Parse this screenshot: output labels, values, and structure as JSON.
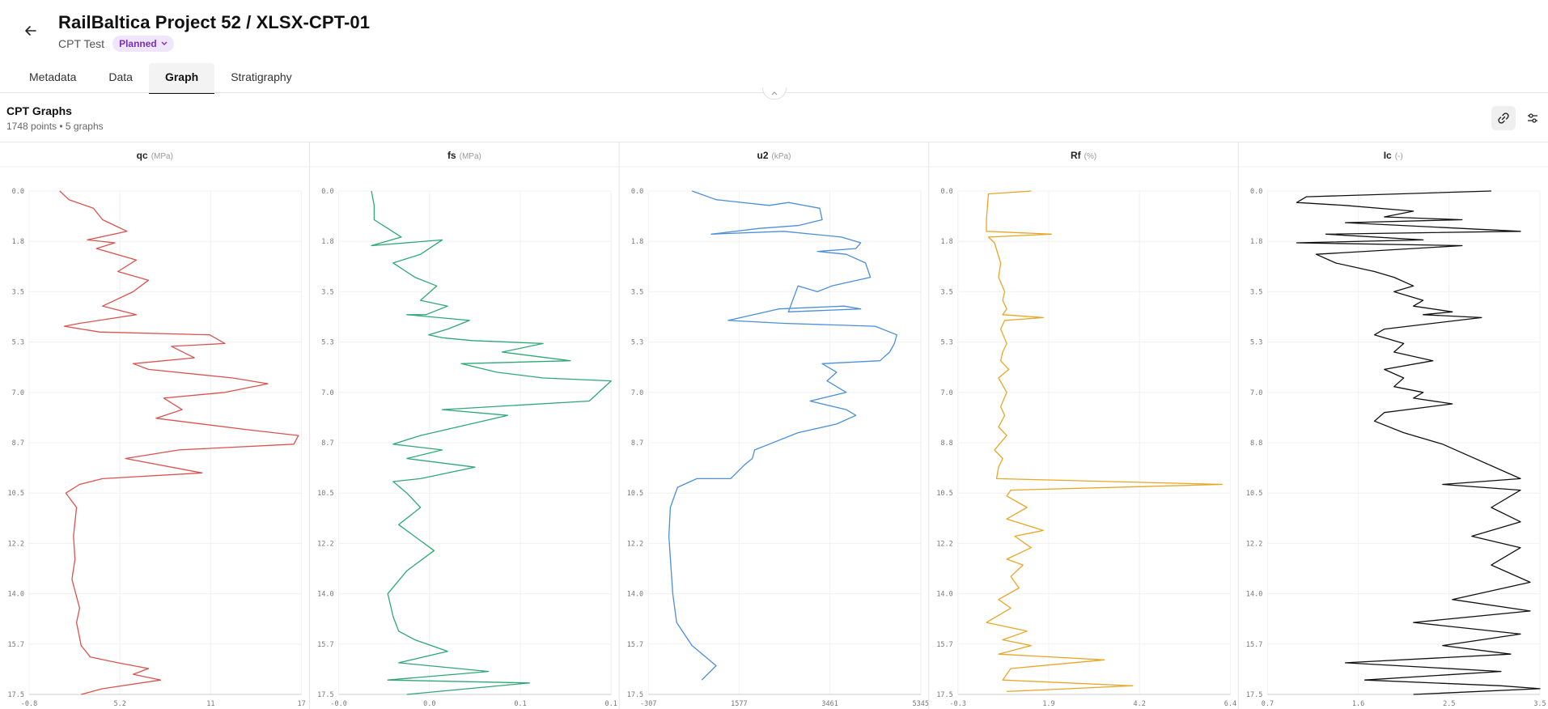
{
  "header": {
    "title": "RailBaltica Project 52 / XLSX-CPT-01",
    "subtitle": "CPT Test",
    "status": "Planned"
  },
  "tabs": [
    {
      "label": "Metadata"
    },
    {
      "label": "Data"
    },
    {
      "label": "Graph"
    },
    {
      "label": "Stratigraphy"
    }
  ],
  "active_tab": "Graph",
  "panel": {
    "title": "CPT Graphs",
    "summary": "1748 points • 5 graphs"
  },
  "icons": {
    "back": "arrow-left-icon",
    "badge": "chevron-down-icon",
    "collapse": "chevron-up-icon",
    "link": "link-icon",
    "settings": "sliders-icon"
  },
  "chart_data": [
    {
      "type": "line",
      "title": "qc",
      "unit": "(MPa)",
      "color": "#d9534f",
      "x_ticks": [
        "-0.8",
        "5.2",
        "11",
        "17"
      ],
      "y_ticks": [
        "0.0",
        "1.8",
        "3.5",
        "5.3",
        "7.0",
        "8.7",
        "10.5",
        "12.2",
        "14.0",
        "15.7",
        "17.5"
      ],
      "xlim": [
        -0.8,
        17
      ],
      "ylim": [
        0,
        17.5
      ],
      "x": [
        1.2,
        1.8,
        3.4,
        4.0,
        5.6,
        3.0,
        4.8,
        3.6,
        6.2,
        5.0,
        7.0,
        6.0,
        4.0,
        6.2,
        2.5,
        1.5,
        3.8,
        11.0,
        12.0,
        8.5,
        10.0,
        6.0,
        7.0,
        12.5,
        14.8,
        12.0,
        8.0,
        9.2,
        7.5,
        13.5,
        16.8,
        16.5,
        9.0,
        5.5,
        10.5,
        4.0,
        2.5,
        1.6,
        2.3,
        2.1,
        2.2,
        2.0,
        2.5,
        2.3,
        2.6,
        3.2,
        5.0,
        7.0,
        6.0,
        7.8,
        4.0,
        2.6
      ],
      "y": [
        0.0,
        0.3,
        0.6,
        1.0,
        1.4,
        1.7,
        1.8,
        2.0,
        2.4,
        2.8,
        3.1,
        3.5,
        4.0,
        4.3,
        4.6,
        4.7,
        4.9,
        5.0,
        5.3,
        5.4,
        5.8,
        6.0,
        6.2,
        6.5,
        6.7,
        7.0,
        7.2,
        7.6,
        7.9,
        8.3,
        8.5,
        8.8,
        9.0,
        9.3,
        9.8,
        10.0,
        10.2,
        10.5,
        11.0,
        12.0,
        12.8,
        13.5,
        14.5,
        15.0,
        15.8,
        16.2,
        16.4,
        16.6,
        16.8,
        17.0,
        17.3,
        17.5
      ]
    },
    {
      "type": "line",
      "title": "fs",
      "unit": "(MPa)",
      "color": "#2ea877",
      "x_ticks": [
        "-0.0",
        "0.0",
        "0.1",
        "0.1"
      ],
      "y_ticks": [
        "0.0",
        "1.8",
        "3.5",
        "5.3",
        "7.0",
        "8.7",
        "10.5",
        "12.2",
        "14.0",
        "15.7",
        "17.5"
      ],
      "xlim": [
        0,
        1
      ],
      "ylim": [
        0,
        17.5
      ],
      "x": [
        0.12,
        0.13,
        0.13,
        0.18,
        0.23,
        0.12,
        0.38,
        0.3,
        0.2,
        0.28,
        0.36,
        0.3,
        0.4,
        0.32,
        0.25,
        0.48,
        0.4,
        0.33,
        0.38,
        0.49,
        0.75,
        0.6,
        0.85,
        0.45,
        0.58,
        0.75,
        1.0,
        0.92,
        0.38,
        0.62,
        0.3,
        0.2,
        0.38,
        0.25,
        0.5,
        0.3,
        0.2,
        0.25,
        0.3,
        0.22,
        0.35,
        0.25,
        0.18,
        0.2,
        0.22,
        0.28,
        0.4,
        0.22,
        0.55,
        0.18,
        0.7,
        0.25
      ],
      "y": [
        0.0,
        0.5,
        1.0,
        1.3,
        1.6,
        1.9,
        1.7,
        2.2,
        2.5,
        3.0,
        3.3,
        3.8,
        4.0,
        4.3,
        4.3,
        4.5,
        4.8,
        5.0,
        5.1,
        5.2,
        5.3,
        5.6,
        5.9,
        6.0,
        6.3,
        6.5,
        6.6,
        7.3,
        7.6,
        7.8,
        8.5,
        8.8,
        9.0,
        9.3,
        9.6,
        10.0,
        10.1,
        10.5,
        11.0,
        11.6,
        12.5,
        13.2,
        14.0,
        14.8,
        15.3,
        15.6,
        16.0,
        16.4,
        16.7,
        17.0,
        17.1,
        17.5
      ]
    },
    {
      "type": "line",
      "title": "u2",
      "unit": "(kPa)",
      "color": "#4a8fd8",
      "x_ticks": [
        "-307",
        "1577",
        "3461",
        "5345"
      ],
      "y_ticks": [
        "0.0",
        "1.8",
        "3.5",
        "5.3",
        "7.0",
        "8.7",
        "10.5",
        "12.2",
        "14.0",
        "15.7",
        "17.5"
      ],
      "xlim": [
        -307,
        5345
      ],
      "ylim": [
        0,
        17.5
      ],
      "x": [
        600,
        1100,
        2200,
        2600,
        3250,
        3300,
        2800,
        2000,
        1000,
        2500,
        3700,
        4100,
        4000,
        3200,
        3800,
        4200,
        4300,
        3500,
        3200,
        2800,
        2600,
        4100,
        3750,
        2400,
        1350,
        2500,
        4400,
        4850,
        4800,
        4700,
        4500,
        3300,
        3600,
        3400,
        3800,
        3050,
        3800,
        4000,
        3600,
        2800,
        2200,
        1900,
        1850,
        1700,
        1400,
        700,
        300,
        150,
        120,
        200,
        280,
        600,
        1100,
        800
      ],
      "y": [
        0.0,
        0.3,
        0.5,
        0.4,
        0.6,
        1.0,
        1.2,
        1.3,
        1.5,
        1.4,
        1.6,
        1.8,
        2.0,
        2.1,
        2.2,
        2.5,
        3.0,
        3.3,
        3.5,
        3.3,
        4.2,
        4.1,
        4.0,
        4.1,
        4.5,
        4.6,
        4.7,
        5.0,
        5.3,
        5.6,
        5.9,
        6.0,
        6.3,
        6.6,
        7.0,
        7.3,
        7.6,
        7.8,
        8.1,
        8.4,
        8.8,
        9.0,
        9.3,
        9.5,
        10.0,
        10.0,
        10.3,
        11.0,
        12.0,
        14.0,
        15.0,
        15.8,
        16.5,
        17.0
      ]
    },
    {
      "type": "line",
      "title": "Rf",
      "unit": "(%)",
      "color": "#e8a626",
      "x_ticks": [
        "-0.3",
        "1.9",
        "4.2",
        "6.4"
      ],
      "y_ticks": [
        "0.0",
        "1.8",
        "3.5",
        "5.3",
        "7.0",
        "8.8",
        "10.5",
        "12.2",
        "14.0",
        "15.7",
        "17.5"
      ],
      "xlim": [
        -0.3,
        6.4
      ],
      "ylim": [
        0,
        17.5
      ],
      "x": [
        1.5,
        0.45,
        0.4,
        0.4,
        2.0,
        0.45,
        0.6,
        0.75,
        0.7,
        0.85,
        0.8,
        0.9,
        0.8,
        1.8,
        0.85,
        0.75,
        0.9,
        0.8,
        0.75,
        0.95,
        0.7,
        0.9,
        0.75,
        0.85,
        0.7,
        0.9,
        0.6,
        0.8,
        0.7,
        0.65,
        6.2,
        1.0,
        0.9,
        1.4,
        0.9,
        1.8,
        1.1,
        1.5,
        0.9,
        1.3,
        1.0,
        1.2,
        0.7,
        1.0,
        0.4,
        1.4,
        0.8,
        1.5,
        0.7,
        3.3,
        1.0,
        0.8,
        4.0,
        0.9
      ],
      "y": [
        0.0,
        0.1,
        1.0,
        1.4,
        1.5,
        1.6,
        1.8,
        2.5,
        3.0,
        3.5,
        3.8,
        4.1,
        4.3,
        4.4,
        4.5,
        4.8,
        5.3,
        5.6,
        5.9,
        6.2,
        6.5,
        7.0,
        7.5,
        7.8,
        8.2,
        8.5,
        9.0,
        9.3,
        9.6,
        10.0,
        10.2,
        10.4,
        10.6,
        11.0,
        11.4,
        11.8,
        12.0,
        12.4,
        12.8,
        13.0,
        13.4,
        13.8,
        14.2,
        14.5,
        15.0,
        15.3,
        15.6,
        15.8,
        16.1,
        16.3,
        16.6,
        17.0,
        17.2,
        17.4
      ]
    },
    {
      "type": "line",
      "title": "Ic",
      "unit": "(-)",
      "color": "#111111",
      "x_ticks": [
        "0.7",
        "1.6",
        "2.5",
        "3.5"
      ],
      "y_ticks": [
        "0.0",
        "1.8",
        "3.5",
        "5.3",
        "7.0",
        "8.8",
        "10.5",
        "12.2",
        "14.0",
        "15.7",
        "17.5"
      ],
      "xlim": [
        0.7,
        3.5
      ],
      "ylim": [
        0,
        17.5
      ],
      "x": [
        3.0,
        1.1,
        1.0,
        1.5,
        2.2,
        1.9,
        2.7,
        1.5,
        3.3,
        1.3,
        2.3,
        1.0,
        2.7,
        1.2,
        1.4,
        1.8,
        2.0,
        2.2,
        2.0,
        2.3,
        2.2,
        2.6,
        2.3,
        2.9,
        1.9,
        1.8,
        2.1,
        2.0,
        2.4,
        1.9,
        2.1,
        2.0,
        2.3,
        2.2,
        2.6,
        1.9,
        1.8,
        2.1,
        2.5,
        3.3,
        2.5,
        3.3,
        3.0,
        3.3,
        2.8,
        3.3,
        3.0,
        3.4,
        2.6,
        3.4,
        2.2,
        3.3,
        2.5,
        3.2,
        1.5,
        3.1,
        1.7,
        3.1,
        3.5,
        2.2
      ],
      "y": [
        0.0,
        0.2,
        0.4,
        0.5,
        0.7,
        0.9,
        1.0,
        1.1,
        1.4,
        1.5,
        1.7,
        1.8,
        1.9,
        2.2,
        2.5,
        2.8,
        3.0,
        3.3,
        3.5,
        3.8,
        4.0,
        4.2,
        4.3,
        4.4,
        4.8,
        5.0,
        5.3,
        5.6,
        5.9,
        6.2,
        6.5,
        6.8,
        7.0,
        7.2,
        7.4,
        7.7,
        8.0,
        8.4,
        8.8,
        10.0,
        10.2,
        10.4,
        11.0,
        11.5,
        12.0,
        12.4,
        13.0,
        13.6,
        14.2,
        14.6,
        15.0,
        15.4,
        15.8,
        16.1,
        16.4,
        16.7,
        17.0,
        17.2,
        17.3,
        17.5
      ]
    }
  ]
}
